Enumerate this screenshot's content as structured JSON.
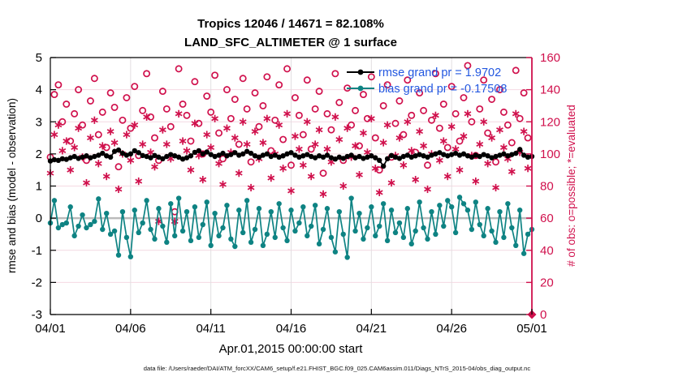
{
  "figure": {
    "title_line1": "Tropics 12046 / 14671 = 82.108%",
    "title_line2": "LAND_SFC_ALTIMETER @ 1 surface",
    "xlabel": "Apr.01,2015 00:00:00 start",
    "ylabel_left": "rmse and bias (model - observation)",
    "ylabel_right": "# of obs: o=possible; *=evaluated",
    "footer": "data file: /Users/raeder/DAI/ATM_forcXX/CAM6_setup/f.e21.FHIST_BGC.f09_025.CAM6assim.011/Diags_NTrS_2015-04/obs_diag_output.nc"
  },
  "legend": {
    "rmse_label": "rmse grand pr = 1.9702",
    "bias_label": "bias grand pr = -0.17508"
  },
  "colors": {
    "crimson": "#d0104c",
    "teal": "#0e8383",
    "black": "#000000",
    "legend_blue": "#2257e0",
    "grid_pink": "#f4d9e2",
    "grid_gray": "#e2dee1",
    "zero_line": "#bbbbbb"
  },
  "chart_data": {
    "type": "line",
    "title": "Tropics 12046 / 14671 = 82.108%  |  LAND_SFC_ALTIMETER @ 1 surface",
    "xlabel": "Apr.01,2015 00:00:00 start",
    "x_start_day": 0,
    "x_step_days": 0.25,
    "n_points": 121,
    "x_tick_labels": [
      "04/01",
      "04/06",
      "04/11",
      "04/16",
      "04/21",
      "04/26",
      "05/01"
    ],
    "x_tick_days": [
      0,
      5,
      10,
      15,
      20,
      25,
      30
    ],
    "ylim_left": [
      -3,
      5
    ],
    "yticks_left": [
      -3,
      -2,
      -1,
      0,
      1,
      2,
      3,
      4,
      5
    ],
    "ylim_right": [
      0,
      160
    ],
    "yticks_right": [
      0,
      20,
      40,
      60,
      80,
      100,
      120,
      140,
      160
    ],
    "grid": true,
    "legend_position": "top-right-inside",
    "stats": {
      "rmse_grand_pr": 1.9702,
      "bias_grand_pr": -0.17508,
      "obs_evaluated_total": 12046,
      "obs_possible_total": 14671,
      "evaluated_percent": 82.108
    },
    "series": [
      {
        "name": "N_possible (o)",
        "axis": "right",
        "marker": "open-circle",
        "line": false,
        "color": "#d0104c",
        "values": [
          98,
          137,
          143,
          120,
          131,
          108,
          125,
          140,
          118,
          96,
          133,
          147,
          112,
          126,
          104,
          138,
          129,
          92,
          121,
          135,
          116,
          142,
          99,
          127,
          150,
          123,
          110,
          96,
          139,
          128,
          117,
          64,
          153,
          131,
          124,
          108,
          145,
          119,
          100,
          136,
          126,
          149,
          113,
          97,
          140,
          122,
          134,
          106,
          147,
          128,
          95,
          138,
          117,
          130,
          148,
          102,
          121,
          143,
          109,
          153,
          93,
          135,
          124,
          112,
          146,
          103,
          128,
          139,
          88,
          125,
          115,
          150,
          132,
          96,
          141,
          118,
          127,
          105,
          137,
          122,
          148,
          110,
          90,
          130,
          143,
          98,
          119,
          133,
          112,
          146,
          124,
          101,
          138,
          127,
          93,
          121,
          150,
          116,
          131,
          104,
          142,
          125,
          108,
          135,
          155,
          120,
          99,
          128,
          146,
          113,
          134,
          95,
          140,
          126,
          118,
          107,
          152,
          122,
          138,
          110,
          0
        ]
      },
      {
        "name": "N_evaluated (*)",
        "axis": "right",
        "marker": "asterisk",
        "line": false,
        "color": "#d0104c",
        "values": [
          88,
          112,
          118,
          102,
          108,
          90,
          104,
          116,
          98,
          82,
          110,
          121,
          94,
          105,
          86,
          114,
          107,
          78,
          100,
          112,
          96,
          118,
          83,
          106,
          123,
          101,
          92,
          58,
          115,
          106,
          97,
          58,
          125,
          108,
          102,
          90,
          119,
          99,
          84,
          112,
          104,
          122,
          94,
          81,
          116,
          101,
          110,
          88,
          120,
          106,
          79,
          114,
          97,
          107,
          122,
          85,
          100,
          118,
          91,
          125,
          77,
          111,
          103,
          93,
          120,
          86,
          106,
          115,
          75,
          103,
          95,
          123,
          109,
          80,
          116,
          98,
          105,
          87,
          113,
          101,
          122,
          91,
          76,
          107,
          118,
          82,
          99,
          110,
          93,
          120,
          102,
          84,
          114,
          105,
          78,
          100,
          124,
          96,
          108,
          86,
          117,
          103,
          90,
          111,
          125,
          99,
          83,
          106,
          120,
          94,
          110,
          79,
          115,
          104,
          97,
          89,
          125,
          101,
          114,
          91,
          0
        ]
      },
      {
        "name": "rmse",
        "axis": "left",
        "marker": "filled-circle",
        "line": true,
        "color": "#000000",
        "values": [
          1.78,
          1.82,
          1.8,
          1.85,
          1.83,
          1.88,
          1.92,
          1.86,
          1.9,
          1.94,
          1.88,
          1.92,
          1.96,
          2.02,
          1.94,
          1.9,
          2.08,
          2.12,
          2.02,
          1.96,
          2.0,
          2.1,
          2.04,
          1.95,
          1.92,
          1.88,
          1.95,
          1.9,
          1.85,
          1.92,
          1.98,
          1.94,
          1.9,
          1.84,
          1.88,
          1.94,
          2.05,
          2.1,
          2.0,
          2.06,
          1.98,
          1.92,
          1.96,
          2.02,
          1.94,
          1.98,
          2.04,
          1.96,
          2.0,
          2.08,
          2.02,
          1.94,
          1.9,
          1.96,
          2.0,
          1.92,
          1.96,
          1.9,
          1.94,
          2.0,
          2.04,
          1.96,
          1.9,
          1.94,
          1.98,
          1.92,
          1.88,
          1.94,
          1.9,
          1.96,
          1.88,
          1.84,
          1.9,
          1.86,
          1.92,
          1.96,
          1.88,
          1.92,
          1.86,
          1.9,
          1.94,
          1.88,
          1.8,
          1.62,
          1.85,
          1.95,
          1.9,
          1.86,
          1.92,
          1.96,
          1.9,
          1.94,
          1.98,
          1.94,
          1.9,
          1.96,
          2.0,
          2.04,
          1.98,
          1.94,
          1.98,
          2.02,
          1.96,
          2.0,
          1.94,
          1.9,
          1.96,
          1.92,
          1.98,
          1.94,
          1.88,
          1.92,
          1.96,
          2.0,
          1.94,
          1.98,
          2.02,
          2.14,
          1.96,
          1.9,
          1.92
        ]
      },
      {
        "name": "bias",
        "axis": "left",
        "marker": "filled-circle",
        "line": true,
        "color": "#0e8383",
        "values": [
          -0.15,
          0.55,
          -0.3,
          -0.2,
          -0.15,
          0.35,
          -0.55,
          -0.25,
          0.1,
          -0.3,
          -0.2,
          -0.1,
          0.6,
          -0.35,
          0.15,
          -0.5,
          -0.4,
          -1.15,
          0.2,
          -0.6,
          -1.2,
          0.25,
          -0.45,
          -0.15,
          0.55,
          -0.35,
          -0.65,
          0.3,
          -0.25,
          -0.75,
          0.45,
          -0.55,
          0.62,
          -0.4,
          0.2,
          -0.7,
          0.35,
          -0.6,
          -0.2,
          0.5,
          -0.85,
          0.15,
          -0.55,
          -0.3,
          0.4,
          -0.65,
          -0.88,
          0.25,
          -0.45,
          0.55,
          -0.75,
          -0.35,
          0.3,
          -0.85,
          -0.5,
          0.2,
          -0.6,
          0.45,
          -0.3,
          -0.7,
          0.25,
          -0.4,
          -0.15,
          0.35,
          -0.55,
          -0.25,
          0.4,
          -0.8,
          -0.35,
          0.3,
          -0.6,
          -1.05,
          0.2,
          -0.5,
          -1.22,
          0.62,
          -0.4,
          0.15,
          -0.65,
          -0.3,
          0.35,
          -0.55,
          -0.25,
          0.45,
          -0.7,
          0.25,
          -0.45,
          -0.15,
          -0.6,
          0.3,
          -0.8,
          -0.4,
          0.5,
          -0.3,
          -0.65,
          0.2,
          -0.5,
          0.4,
          -0.25,
          0.55,
          0.35,
          -0.45,
          0.65,
          0.45,
          0.25,
          -0.35,
          0.5,
          -0.2,
          -0.55,
          0.3,
          -0.4,
          -0.75,
          0.2,
          -0.6,
          0.45,
          -0.3,
          -0.85,
          0.25,
          -1.1,
          -0.5,
          -0.35
        ]
      }
    ],
    "last_bin_marker": {
      "shape": "filled-diamond",
      "value_right_axis": 0,
      "day": 30
    }
  }
}
